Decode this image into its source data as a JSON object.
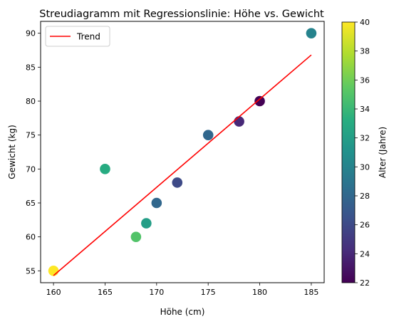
{
  "chart_data": {
    "type": "scatter",
    "title": "Streudiagramm mit Regressionslinie: Höhe vs. Gewicht",
    "xlabel": "Höhe (cm)",
    "ylabel": "Gewicht (kg)",
    "xlim": [
      158.75,
      186.25
    ],
    "ylim": [
      53.25,
      91.75
    ],
    "xticks": [
      160,
      165,
      170,
      175,
      180,
      185
    ],
    "yticks": [
      55,
      60,
      65,
      70,
      75,
      80,
      85,
      90
    ],
    "grid": false,
    "legend": {
      "placement": "top-left",
      "entries": [
        "Trend"
      ]
    },
    "points": [
      {
        "x": 160,
        "y": 55,
        "age": 40
      },
      {
        "x": 165,
        "y": 70,
        "age": 33
      },
      {
        "x": 168,
        "y": 60,
        "age": 35
      },
      {
        "x": 169,
        "y": 62,
        "age": 32
      },
      {
        "x": 170,
        "y": 65,
        "age": 28
      },
      {
        "x": 172,
        "y": 68,
        "age": 26
      },
      {
        "x": 175,
        "y": 75,
        "age": 28
      },
      {
        "x": 178,
        "y": 77,
        "age": 24
      },
      {
        "x": 180,
        "y": 80,
        "age": 22
      },
      {
        "x": 185,
        "y": 90,
        "age": 30
      }
    ],
    "trend": {
      "name": "Trend",
      "color": "#ff0000",
      "x": [
        160,
        185
      ],
      "y": [
        54.3,
        86.8
      ]
    },
    "colorbar": {
      "label": "Alter (Jahre)",
      "colormap": "viridis",
      "range": [
        22,
        40
      ],
      "ticks": [
        22,
        24,
        26,
        28,
        30,
        32,
        34,
        36,
        38,
        40
      ]
    }
  }
}
